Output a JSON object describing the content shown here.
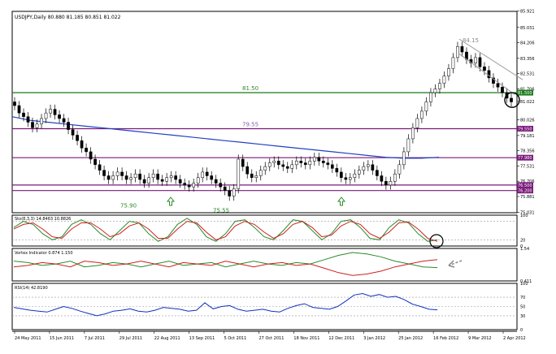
{
  "chart_data": {
    "type": "candlestick",
    "symbol_header": "USDJPY,Daily  80.880 81.185 80.851 81.022",
    "price_ticks": [
      "85.921",
      "85.031",
      "84.206",
      "83.356",
      "82.531",
      "81.706",
      "81.022",
      "80.026",
      "79.181",
      "78.356",
      "77.531",
      "76.706",
      "75.881",
      "75.031"
    ],
    "price_axis_ylim": [
      75.0,
      85.9
    ],
    "price_levels": [
      {
        "label": "81.50",
        "value": 81.5,
        "color": "#1a7a1a",
        "axis_tag": "81.500"
      },
      {
        "label": "79.55",
        "value": 79.55,
        "color": "#7a1a7a",
        "axis_tag": "79.550"
      },
      {
        "label": "",
        "value": 77.98,
        "color": "#7a1a7a",
        "axis_tag": "77.980"
      },
      {
        "label": "",
        "value": 76.5,
        "color": "#7a1a7a",
        "axis_tag": "76.500"
      },
      {
        "label": "",
        "value": 76.2,
        "color": "#7a1a7a",
        "axis_tag": "76.200"
      }
    ],
    "annotations": [
      "84.15",
      "75.90",
      "75.55"
    ],
    "close_path": [
      80.8,
      80.4,
      80.2,
      79.9,
      79.6,
      79.8,
      80.1,
      80.4,
      80.6,
      80.3,
      80.1,
      79.9,
      79.5,
      79.2,
      78.9,
      78.5,
      78.3,
      77.9,
      77.6,
      77.3,
      77.0,
      76.8,
      77.0,
      77.2,
      77.0,
      76.8,
      76.9,
      77.1,
      76.8,
      76.6,
      76.9,
      77.1,
      76.8,
      76.7,
      76.9,
      77.0,
      76.8,
      76.6,
      76.5,
      76.4,
      76.6,
      76.9,
      77.2,
      77.0,
      76.8,
      76.6,
      76.4,
      76.2,
      75.9,
      76.3,
      77.9,
      77.5,
      77.1,
      76.9,
      77.0,
      77.3,
      77.5,
      77.7,
      77.8,
      77.6,
      77.5,
      77.4,
      77.6,
      77.8,
      77.7,
      77.6,
      77.8,
      78.0,
      77.8,
      77.7,
      77.6,
      77.4,
      77.2,
      76.9,
      76.8,
      76.9,
      77.1,
      77.3,
      77.5,
      77.6,
      77.3,
      77.0,
      76.7,
      76.5,
      76.7,
      77.1,
      77.6,
      78.3,
      79.0,
      79.6,
      80.1,
      80.5,
      81.0,
      81.5,
      81.7,
      82.0,
      82.4,
      82.8,
      83.4,
      84.0,
      83.7,
      83.3,
      83.1,
      83.4,
      82.9,
      82.7,
      82.3,
      82.0,
      81.8,
      81.5,
      81.2,
      81.0
    ],
    "ma_path": [
      80.2,
      80.0,
      79.9,
      79.8,
      79.7,
      79.6,
      79.5,
      79.4,
      79.3,
      79.2,
      79.1,
      79.0,
      78.9,
      78.8,
      78.7,
      78.6,
      78.5,
      78.4,
      78.3,
      78.2,
      78.1,
      78.0,
      77.95,
      77.95,
      78.0
    ],
    "stochastic": {
      "label": "Sto(8,3,3) 14.8463 10.8826",
      "ticks": [
        "100",
        "20",
        "0"
      ],
      "main": [
        60,
        80,
        70,
        40,
        20,
        30,
        70,
        85,
        70,
        40,
        20,
        50,
        80,
        75,
        40,
        15,
        30,
        70,
        90,
        70,
        30,
        15,
        40,
        80,
        85,
        60,
        30,
        20,
        50,
        85,
        80,
        50,
        20,
        40,
        80,
        85,
        60,
        25,
        20,
        60,
        85,
        75,
        40,
        15,
        20
      ],
      "signal": [
        55,
        70,
        75,
        55,
        30,
        25,
        55,
        75,
        75,
        55,
        30,
        40,
        65,
        75,
        55,
        25,
        25,
        55,
        80,
        75,
        45,
        20,
        30,
        65,
        80,
        70,
        45,
        25,
        40,
        70,
        80,
        60,
        30,
        35,
        65,
        80,
        70,
        40,
        25,
        45,
        75,
        78,
        55,
        25,
        15
      ]
    },
    "vortex": {
      "label": "Vortex Indicator 0.874 1.150",
      "ticks": [
        "1.54",
        "",
        "0.411"
      ],
      "plus": [
        1.1,
        1.05,
        0.95,
        1.0,
        1.1,
        0.9,
        0.95,
        1.05,
        1.0,
        0.9,
        1.0,
        1.1,
        0.95,
        1.0,
        1.05,
        0.9,
        1.0,
        1.1,
        1.0,
        0.95,
        1.05,
        1.0,
        1.15,
        1.3,
        1.4,
        1.35,
        1.25,
        1.1,
        1.0,
        0.9,
        0.874
      ],
      "minus": [
        0.9,
        0.95,
        1.05,
        1.0,
        0.9,
        1.1,
        1.05,
        0.95,
        1.0,
        1.1,
        1.0,
        0.9,
        1.05,
        1.0,
        0.95,
        1.1,
        1.0,
        0.9,
        1.0,
        1.05,
        0.95,
        1.0,
        0.85,
        0.7,
        0.6,
        0.65,
        0.75,
        0.9,
        1.0,
        1.1,
        1.15
      ]
    },
    "rsi": {
      "label": "RSI(14) 42.8190",
      "ticks": [
        "100",
        "70",
        "50",
        "30",
        "0"
      ],
      "values": [
        48,
        45,
        42,
        40,
        38,
        44,
        50,
        46,
        40,
        35,
        30,
        34,
        40,
        42,
        45,
        40,
        38,
        42,
        48,
        46,
        44,
        40,
        42,
        58,
        45,
        50,
        52,
        44,
        40,
        42,
        44,
        40,
        38,
        46,
        52,
        56,
        48,
        46,
        44,
        50,
        62,
        75,
        78,
        72,
        76,
        70,
        72,
        65,
        55,
        50,
        44,
        42.8
      ]
    },
    "x_ticks": [
      "24 May 2011",
      "15 Jun 2011",
      "7 Jul 2011",
      "29 Jul 2011",
      "22 Aug 2011",
      "13 Sep 2011",
      "5 Oct 2011",
      "27 Oct 2011",
      "18 Nov 2011",
      "12 Dec 2011",
      "3 Jan 2012",
      "25 Jan 2012",
      "16 Feb 2012",
      "9 Mar 2012",
      "2 Apr 2012"
    ],
    "x_ticks_display": [
      "24 May 2011",
      "15 Jun 2011",
      "7 Jul 2011",
      "29 Jul 2011",
      "22 Aug 2011",
      "13 Sep 2011",
      "5 Oct 2011",
      "27 Oct 2011",
      "18 Nov 2011",
      "12 Dec 2011",
      "3 Jan 2012",
      "25 Jan 2012",
      "16 Feb 2012",
      "9 Mar 2012",
      "2 Apr 2012"
    ]
  }
}
